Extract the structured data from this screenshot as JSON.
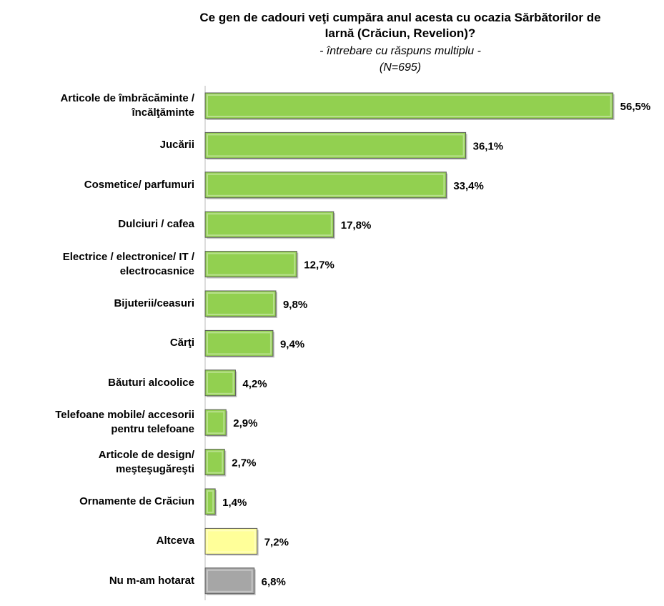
{
  "chart_data": {
    "type": "bar",
    "orientation": "horizontal",
    "title": "Ce gen de cadouri veţi cumpăra anul acesta cu ocazia Sărbătorilor de\nIarnă (Crăciun, Revelion)?",
    "subtitle": "- întrebare cu răspuns multiplu -\n(N=695)",
    "categories": [
      "Articole de îmbrăcăminte /\nîncălţăminte",
      "Jucării",
      "Cosmetice/ parfumuri",
      "Dulciuri / cafea",
      "Electrice / electronice/ IT /\nelectrocasnice",
      "Bijuterii/ceasuri",
      "Cărţi",
      "Băuturi alcoolice",
      "Telefoane mobile/ accesorii\npentru telefoane",
      "Articole de design/\nmeşteşugăreşti",
      "Ornamente de Crăciun",
      "Altceva",
      "Nu m-am hotarat"
    ],
    "values": [
      56.5,
      36.1,
      33.4,
      17.8,
      12.7,
      9.8,
      9.4,
      4.2,
      2.9,
      2.7,
      1.4,
      7.2,
      6.8
    ],
    "value_labels": [
      "56,5%",
      "36,1%",
      "33,4%",
      "17,8%",
      "12,7%",
      "9,8%",
      "9,4%",
      "4,2%",
      "2,9%",
      "2,7%",
      "1,4%",
      "7,2%",
      "6,8%"
    ],
    "colors": [
      "#92d050",
      "#92d050",
      "#92d050",
      "#92d050",
      "#92d050",
      "#92d050",
      "#92d050",
      "#92d050",
      "#92d050",
      "#92d050",
      "#92d050",
      "#ffff99",
      "#a6a6a6"
    ]
  }
}
